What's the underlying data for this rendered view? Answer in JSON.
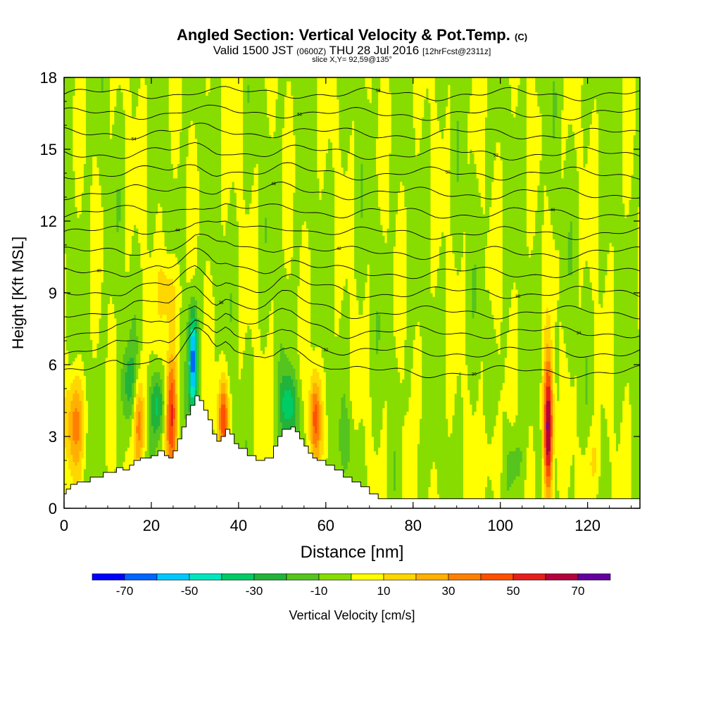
{
  "title": {
    "main": "Angled Section: Vertical Velocity & Pot.Temp.",
    "unit_tag": "(C)",
    "valid_a": "Valid 1500 JST",
    "valid_z": "(0600Z)",
    "valid_b": "THU 28 Jul 2016",
    "fcst": "[12hrFcst@2311z]",
    "slice": "slice X,Y= 92,59@135°"
  },
  "chart_data": {
    "type": "heatmap",
    "xlabel": "Distance [nm]",
    "ylabel": "Height [Kft MSL]",
    "xlim": [
      0,
      132
    ],
    "ylim": [
      0,
      18
    ],
    "x_ticks": [
      "0",
      "20",
      "40",
      "60",
      "80",
      "100",
      "120"
    ],
    "y_ticks": [
      "0",
      "3",
      "6",
      "9",
      "12",
      "15",
      "18"
    ],
    "colorbar": {
      "label": "Vertical Velocity [cm/s]",
      "tick_labels": [
        "-70",
        "-50",
        "-30",
        "-10",
        "10",
        "30",
        "50",
        "70"
      ],
      "bins": [
        -80,
        -70,
        -60,
        -50,
        -40,
        -30,
        -20,
        -10,
        0,
        10,
        20,
        30,
        40,
        50,
        60,
        70,
        80
      ],
      "colors": [
        "#0000ff",
        "#0064ff",
        "#00c8ff",
        "#00e6c0",
        "#00cc66",
        "#22b33a",
        "#55c41e",
        "#88dd00",
        "#ffff00",
        "#ffd700",
        "#ffb000",
        "#ff8000",
        "#ff5000",
        "#e61e1e",
        "#b4003c",
        "#6400a0"
      ]
    },
    "terrain": {
      "x": [
        0,
        0.5,
        1.5,
        3,
        6,
        9,
        12,
        13.5,
        15,
        16,
        17.5,
        20,
        21.5,
        23,
        24,
        25,
        26,
        27,
        28,
        29,
        30,
        31,
        32,
        33,
        34,
        35,
        36,
        37,
        38,
        39,
        40,
        42,
        44,
        46,
        48,
        49,
        50,
        52,
        53,
        54,
        55,
        56,
        57,
        58,
        60,
        62,
        64,
        66,
        68,
        70,
        72,
        132
      ],
      "height": [
        0.6,
        0.8,
        1.0,
        1.1,
        1.3,
        1.5,
        1.7,
        1.6,
        1.8,
        2.0,
        2.1,
        2.2,
        2.4,
        2.2,
        2.1,
        2.4,
        2.9,
        3.4,
        3.9,
        4.3,
        4.7,
        4.5,
        4.1,
        3.7,
        3.1,
        2.8,
        3.0,
        3.3,
        3.1,
        2.7,
        2.5,
        2.2,
        2.0,
        2.1,
        2.6,
        3.0,
        3.3,
        3.4,
        3.2,
        2.9,
        2.6,
        2.3,
        2.1,
        2.0,
        1.8,
        1.6,
        1.3,
        1.1,
        0.9,
        0.6,
        0.4,
        0.4
      ]
    },
    "theta_contours": [
      {
        "label": "58",
        "base_theta": 0
      },
      {
        "label": "56",
        "base_theta": 0
      },
      {
        "label": "54",
        "base_theta": 0
      },
      {
        "label": "52",
        "base_theta": 0
      },
      {
        "label": "50",
        "base_theta": 0
      },
      {
        "label": "48",
        "base_theta": 0
      },
      {
        "label": "46",
        "base_theta": 0
      },
      {
        "label": "44",
        "base_theta": 0
      },
      {
        "label": "42",
        "base_theta": 0
      },
      {
        "label": "40",
        "base_theta": 0
      },
      {
        "label": "38",
        "base_theta": 0
      },
      {
        "label": "36",
        "base_theta": 0
      },
      {
        "label": "34",
        "base_theta": 0
      },
      {
        "label": "32",
        "base_theta": 0
      },
      {
        "label": "30",
        "base_theta": 0
      }
    ],
    "velocity_features": [
      {
        "x": 2.5,
        "h": 3.6,
        "sx": 1.6,
        "sy": 1.4,
        "w": 32
      },
      {
        "x": 17,
        "h": 3.6,
        "sx": 0.9,
        "sy": 1.4,
        "w": 40
      },
      {
        "x": 24.5,
        "h": 4.0,
        "sx": 0.9,
        "sy": 1.8,
        "w": 50
      },
      {
        "x": 24,
        "h": 9.0,
        "sx": 1.5,
        "sy": 1.2,
        "w": 22
      },
      {
        "x": 36.5,
        "h": 3.8,
        "sx": 0.9,
        "sy": 1.2,
        "w": 46
      },
      {
        "x": 57.5,
        "h": 3.8,
        "sx": 0.9,
        "sy": 1.3,
        "w": 44
      },
      {
        "x": 111,
        "h": 3.3,
        "sx": 0.75,
        "sy": 2.0,
        "w": 78
      },
      {
        "x": 29.5,
        "h": 6.2,
        "sx": 0.7,
        "sy": 1.5,
        "w": -62
      },
      {
        "x": 21.5,
        "h": 4.3,
        "sx": 1.2,
        "sy": 1.0,
        "w": -32
      },
      {
        "x": 51.5,
        "h": 4.3,
        "sx": 1.4,
        "sy": 1.0,
        "w": -34
      },
      {
        "x": 15,
        "h": 5.2,
        "sx": 1.4,
        "sy": 1.2,
        "w": -22
      },
      {
        "x": 81,
        "h": 2.0,
        "sx": 1.0,
        "sy": 1.5,
        "w": -16
      },
      {
        "x": 103,
        "h": 2.0,
        "sx": 1.6,
        "sy": 1.1,
        "w": -14
      },
      {
        "x": 65,
        "h": 2.8,
        "sx": 1.2,
        "sy": 0.9,
        "w": -12
      },
      {
        "x": 80,
        "h": 1.8,
        "sx": 1.5,
        "sy": 1.3,
        "w": 14
      },
      {
        "x": 98,
        "h": 2.2,
        "sx": 1.6,
        "sy": 1.2,
        "w": 12
      },
      {
        "x": 121,
        "h": 2.0,
        "sx": 1.5,
        "sy": 1.0,
        "w": 13
      }
    ]
  }
}
